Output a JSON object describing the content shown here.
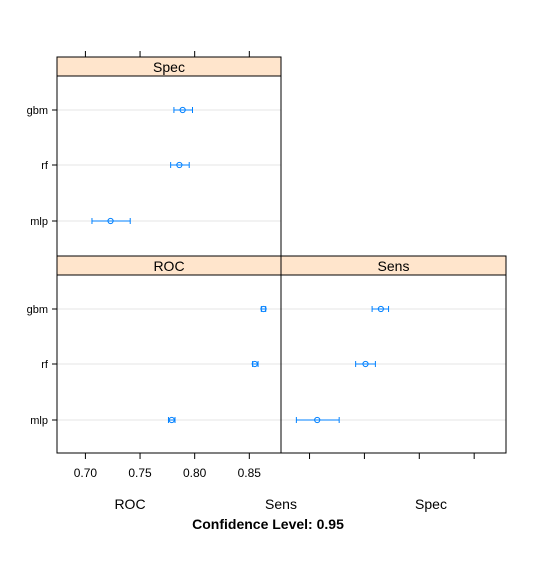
{
  "chart_data": {
    "type": "dotplot",
    "title": "",
    "xlabel_bottom": [
      "ROC",
      "Sens",
      "Spec"
    ],
    "caption": "Confidence Level: 0.95",
    "grid": true,
    "layout": "2x2 lattice (bottom-left ROC, bottom-right Sens, top-left Spec)",
    "categories": [
      "gbm",
      "rf",
      "mlp"
    ],
    "x_ticks": [
      0.7,
      0.75,
      0.8,
      0.85
    ],
    "x_tick_labels": [
      "0.70",
      "0.75",
      "0.80",
      "0.85"
    ],
    "xlim": [
      0.674,
      0.879
    ],
    "colors": {
      "strip_bg": "#ffe5cc",
      "point": "#0080ff",
      "gridline": "#e6e6e6",
      "frame": "#000000"
    },
    "panels": [
      {
        "name": "Spec",
        "points": [
          {
            "model": "gbm",
            "estimate": 0.789,
            "lower": 0.781,
            "upper": 0.798
          },
          {
            "model": "rf",
            "estimate": 0.786,
            "lower": 0.778,
            "upper": 0.795
          },
          {
            "model": "mlp",
            "estimate": 0.723,
            "lower": 0.706,
            "upper": 0.741
          }
        ]
      },
      {
        "name": "ROC",
        "points": [
          {
            "model": "gbm",
            "estimate": 0.863,
            "lower": 0.861,
            "upper": 0.865
          },
          {
            "model": "rf",
            "estimate": 0.855,
            "lower": 0.853,
            "upper": 0.858
          },
          {
            "model": "mlp",
            "estimate": 0.779,
            "lower": 0.776,
            "upper": 0.782
          }
        ]
      },
      {
        "name": "Sens",
        "points": [
          {
            "model": "gbm",
            "estimate": 0.765,
            "lower": 0.757,
            "upper": 0.772
          },
          {
            "model": "rf",
            "estimate": 0.751,
            "lower": 0.742,
            "upper": 0.76
          },
          {
            "model": "mlp",
            "estimate": 0.707,
            "lower": 0.688,
            "upper": 0.727
          }
        ]
      }
    ]
  }
}
